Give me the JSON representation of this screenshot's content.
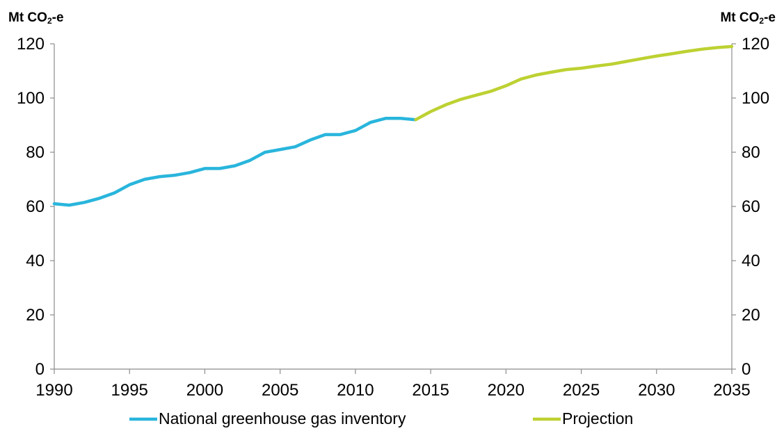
{
  "chart_data": {
    "type": "line",
    "left_axis_unit": {
      "main": "Mt CO",
      "subscript": "2",
      "suffix": "-e"
    },
    "right_axis_unit": {
      "main": "Mt CO",
      "subscript": "2",
      "suffix": "-e"
    },
    "x_ticks": [
      "1990",
      "1995",
      "2000",
      "2005",
      "2010",
      "2015",
      "2020",
      "2025",
      "2030",
      "2035"
    ],
    "y_ticks": [
      "0",
      "20",
      "40",
      "60",
      "80",
      "100",
      "120"
    ],
    "xlim": [
      1990,
      2035
    ],
    "ylim": [
      0,
      120
    ],
    "grid": false,
    "legend_position": "bottom",
    "series": [
      {
        "name": "National greenhouse gas inventory",
        "color": "#29b5dc",
        "x": [
          1990,
          1991,
          1992,
          1993,
          1994,
          1995,
          1996,
          1997,
          1998,
          1999,
          2000,
          2001,
          2002,
          2003,
          2004,
          2005,
          2006,
          2007,
          2008,
          2009,
          2010,
          2011,
          2012,
          2013,
          2014
        ],
        "y": [
          61,
          60.5,
          61.5,
          63,
          65,
          68,
          70,
          71,
          71.5,
          72.5,
          74,
          74,
          75,
          77,
          80,
          81,
          82,
          84.5,
          86.5,
          86.5,
          88,
          91,
          92.5,
          92.5,
          92
        ]
      },
      {
        "name": "Projection",
        "color": "#bdd132",
        "x": [
          2014,
          2015,
          2016,
          2017,
          2018,
          2019,
          2020,
          2021,
          2022,
          2023,
          2024,
          2025,
          2026,
          2027,
          2028,
          2029,
          2030,
          2031,
          2032,
          2033,
          2034,
          2035
        ],
        "y": [
          92,
          95,
          97.5,
          99.5,
          101,
          102.5,
          104.5,
          107,
          108.5,
          109.5,
          110.5,
          111,
          111.8,
          112.5,
          113.5,
          114.5,
          115.5,
          116.3,
          117.2,
          118,
          118.6,
          119
        ]
      }
    ]
  }
}
